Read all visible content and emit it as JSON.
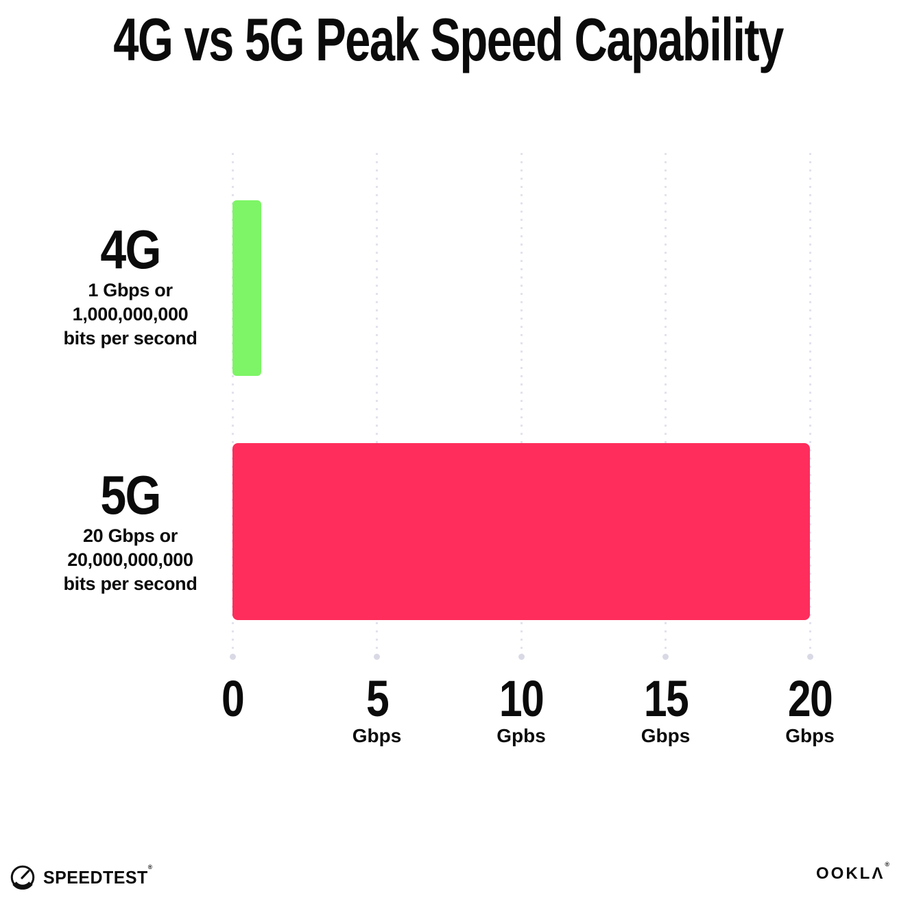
{
  "title": "4G vs 5G Peak Speed Capability",
  "chart_data": {
    "type": "bar",
    "orientation": "horizontal",
    "title": "4G vs 5G Peak Speed Capability",
    "categories": [
      "4G",
      "5G"
    ],
    "values": [
      1,
      20
    ],
    "value_unit": "Gbps",
    "category_sublabels": [
      [
        "1 Gbps or",
        "1,000,000,000",
        "bits per second"
      ],
      [
        "20 Gbps or",
        "20,000,000,000",
        "bits per second"
      ]
    ],
    "bar_colors": [
      "#7DF566",
      "#FE2D5C"
    ],
    "x_ticks": [
      {
        "label": "0",
        "unit": ""
      },
      {
        "label": "5",
        "unit": "Gbps"
      },
      {
        "label": "10",
        "unit": "Gpbs"
      },
      {
        "label": "15",
        "unit": "Gbps"
      },
      {
        "label": "20",
        "unit": "Gbps"
      }
    ],
    "xlim": [
      0,
      20
    ],
    "xlabel": "",
    "ylabel": "",
    "grid": "vertical-dotted",
    "legend": "none"
  },
  "footer": {
    "speedtest_label": "SPEEDTEST",
    "speedtest_trademark": "®",
    "ookla_label": "OOKLΛ",
    "ookla_trademark": "®"
  },
  "colors": {
    "bar_4g": "#7DF566",
    "bar_5g": "#FE2D5C",
    "text": "#0B0B0B",
    "gridline": "#E2E2EE"
  }
}
